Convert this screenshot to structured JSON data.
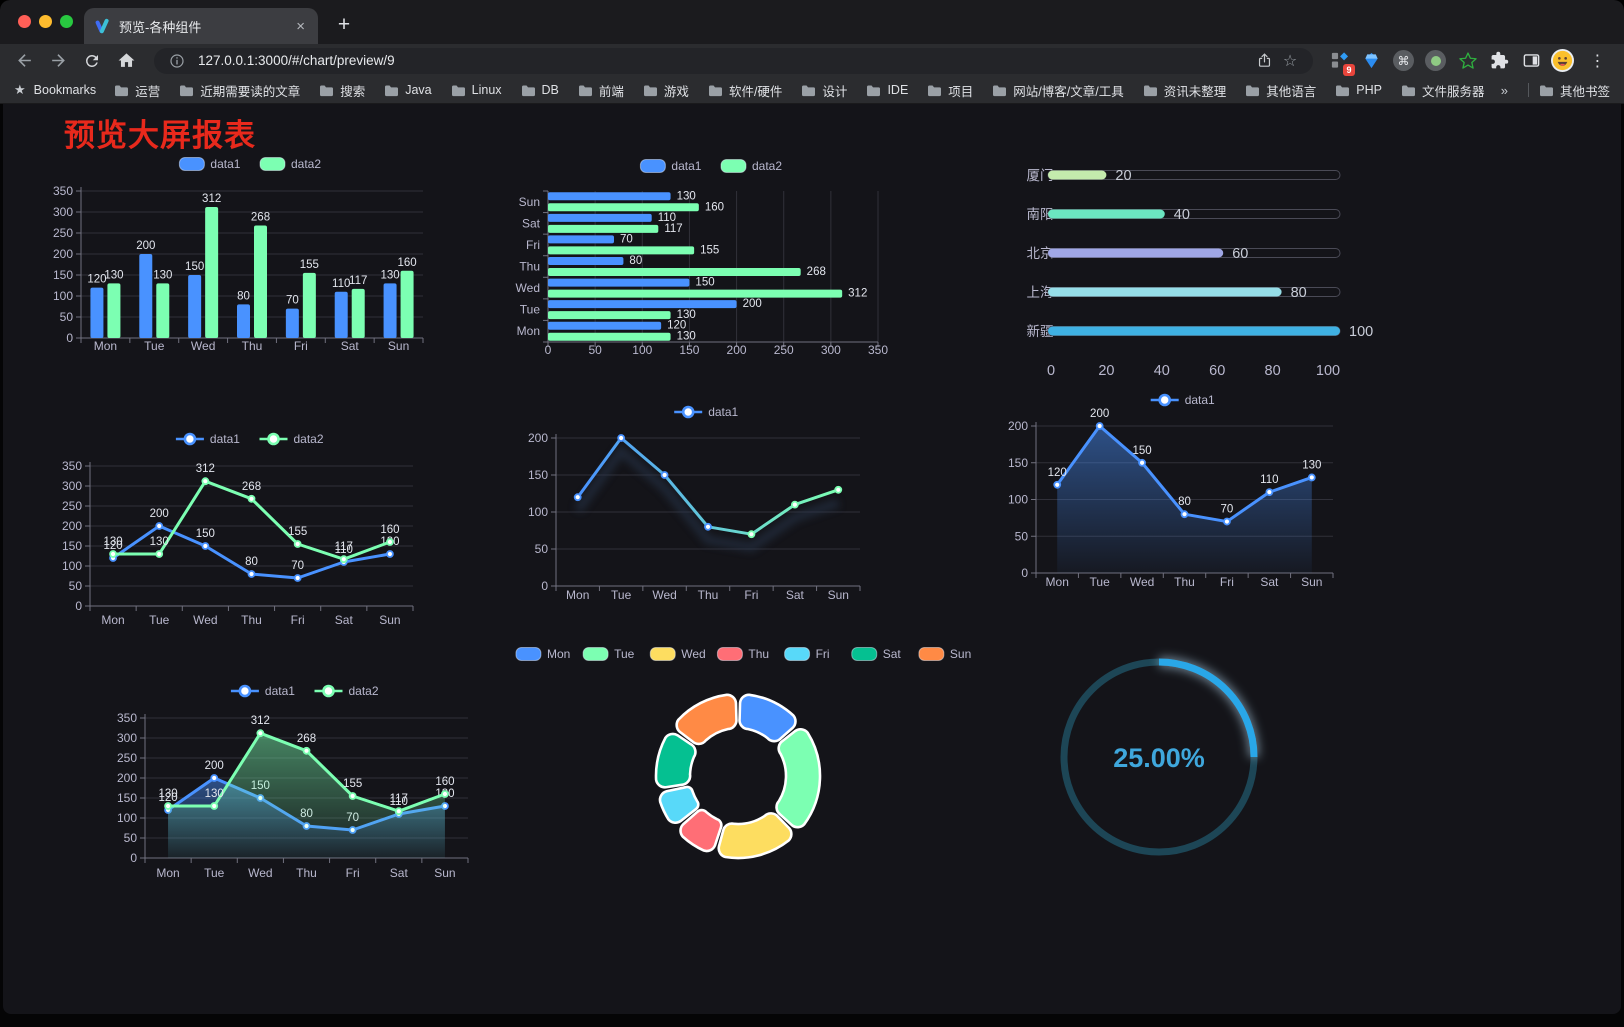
{
  "browser": {
    "tab_title": "预览-各种组件",
    "url_host": "127.0.0.1:3000",
    "url_path": "/#/chart/preview/9",
    "extension_badge": "9",
    "icons": {
      "close_tab": "×",
      "new_tab": "+",
      "menu": "⋮",
      "star_outline": "☆",
      "bookmarks_star": "★",
      "cmd": "⌘"
    },
    "bookmarks_label": "Bookmarks",
    "bookmarks": [
      "运营",
      "近期需要读的文章",
      "搜索",
      "Java",
      "Linux",
      "DB",
      "前端",
      "游戏",
      "软件/硬件",
      "设计",
      "IDE",
      "项目",
      "网站/博客/文章/工具",
      "资讯未整理",
      "其他语言",
      "PHP",
      "文件服务器"
    ],
    "bookmarks_overflow": "»",
    "other_bookmarks": "其他书签"
  },
  "page": {
    "title": "预览大屏报表",
    "title_color": "#e8291c"
  },
  "palette": {
    "series_blue": "#4992ff",
    "series_green": "#7cffb2",
    "axis_text": "#b9b8ce",
    "value_label": "#e3e6ee",
    "grid_line": "#303039",
    "axis_line": "#71717f"
  },
  "chart_data": [
    {
      "type": "bar",
      "name": "grouped-bar",
      "categories": [
        "Mon",
        "Tue",
        "Wed",
        "Thu",
        "Fri",
        "Sat",
        "Sun"
      ],
      "series": [
        {
          "name": "data1",
          "color": "#4992ff",
          "values": [
            120,
            200,
            150,
            80,
            70,
            110,
            130
          ]
        },
        {
          "name": "data2",
          "color": "#7cffb2",
          "values": [
            130,
            130,
            312,
            268,
            155,
            117,
            160
          ]
        }
      ],
      "ylim": [
        0,
        350
      ],
      "ystep": 50,
      "legend_position": "top",
      "grid": true
    },
    {
      "type": "bar",
      "name": "horizontal-grouped-bar",
      "orientation": "horizontal",
      "categories": [
        "Mon",
        "Tue",
        "Wed",
        "Thu",
        "Fri",
        "Sat",
        "Sun"
      ],
      "series": [
        {
          "name": "data1",
          "color": "#4992ff",
          "values": [
            120,
            200,
            150,
            80,
            70,
            110,
            130
          ]
        },
        {
          "name": "data2",
          "color": "#7cffb2",
          "values": [
            130,
            130,
            312,
            268,
            155,
            117,
            160
          ]
        }
      ],
      "xlim": [
        0,
        350
      ],
      "xstep": 50,
      "legend_position": "top",
      "grid": true
    },
    {
      "type": "bar",
      "name": "progress-bars",
      "orientation": "horizontal-progress",
      "rows": [
        {
          "label": "厦门",
          "value": 20,
          "color": "#c4ebad"
        },
        {
          "label": "南阳",
          "value": 40,
          "color": "#6be6c1"
        },
        {
          "label": "北京",
          "value": 60,
          "color": "#a0a7e6"
        },
        {
          "label": "上海",
          "value": 80,
          "color": "#96dee8"
        },
        {
          "label": "新疆",
          "value": 100,
          "color": "#3fb1e3"
        }
      ],
      "xlim": [
        0,
        100
      ],
      "xticks": [
        0,
        20,
        40,
        60,
        80,
        100
      ]
    },
    {
      "type": "line",
      "name": "dual-line",
      "categories": [
        "Mon",
        "Tue",
        "Wed",
        "Thu",
        "Fri",
        "Sat",
        "Sun"
      ],
      "series": [
        {
          "name": "data1",
          "color": "#4992ff",
          "values": [
            120,
            200,
            150,
            80,
            70,
            110,
            130
          ]
        },
        {
          "name": "data2",
          "color": "#7cffb2",
          "values": [
            130,
            130,
            312,
            268,
            155,
            117,
            160
          ]
        }
      ],
      "ylim": [
        0,
        350
      ],
      "ystep": 50,
      "point_labels": true,
      "legend_position": "top"
    },
    {
      "type": "line",
      "name": "gradient-line",
      "categories": [
        "Mon",
        "Tue",
        "Wed",
        "Thu",
        "Fri",
        "Sat",
        "Sun"
      ],
      "series": [
        {
          "name": "data1",
          "gradient": [
            "#4992ff",
            "#7cffb2"
          ],
          "values": [
            120,
            200,
            150,
            80,
            70,
            110,
            130
          ]
        }
      ],
      "ylim": [
        0,
        200
      ],
      "ystep": 50,
      "point_labels": false,
      "legend_position": "top"
    },
    {
      "type": "area",
      "name": "area-line",
      "categories": [
        "Mon",
        "Tue",
        "Wed",
        "Thu",
        "Fri",
        "Sat",
        "Sun"
      ],
      "series": [
        {
          "name": "data1",
          "color": "#4992ff",
          "values": [
            120,
            200,
            150,
            80,
            70,
            110,
            130
          ]
        }
      ],
      "ylim": [
        0,
        200
      ],
      "ystep": 50,
      "point_labels": true,
      "legend_position": "top"
    },
    {
      "type": "area",
      "name": "dual-area-line",
      "categories": [
        "Mon",
        "Tue",
        "Wed",
        "Thu",
        "Fri",
        "Sat",
        "Sun"
      ],
      "series": [
        {
          "name": "data1",
          "color": "#4992ff",
          "values": [
            120,
            200,
            150,
            80,
            70,
            110,
            130
          ]
        },
        {
          "name": "data2",
          "color": "#7cffb2",
          "values": [
            130,
            130,
            312,
            268,
            155,
            117,
            160
          ]
        }
      ],
      "ylim": [
        0,
        350
      ],
      "ystep": 50,
      "point_labels": true,
      "legend_position": "top"
    },
    {
      "type": "pie",
      "name": "donut",
      "items": [
        {
          "label": "Mon",
          "value": 120,
          "color": "#4992ff"
        },
        {
          "label": "Tue",
          "value": 200,
          "color": "#7cffb2"
        },
        {
          "label": "Wed",
          "value": 150,
          "color": "#fddd60"
        },
        {
          "label": "Thu",
          "value": 80,
          "color": "#ff6e76"
        },
        {
          "label": "Fri",
          "value": 70,
          "color": "#58d9f9"
        },
        {
          "label": "Sat",
          "value": 110,
          "color": "#05c091"
        },
        {
          "label": "Sun",
          "value": 130,
          "color": "#ff8a45"
        }
      ],
      "legend_position": "top",
      "inner_radius": 48,
      "outer_radius": 82
    },
    {
      "type": "gauge",
      "name": "ring-progress",
      "value_text": "25.00%",
      "percent": 25,
      "color": "#29a7e8",
      "track_color": "#1d4656",
      "text_color": "#3fa7dc"
    }
  ]
}
